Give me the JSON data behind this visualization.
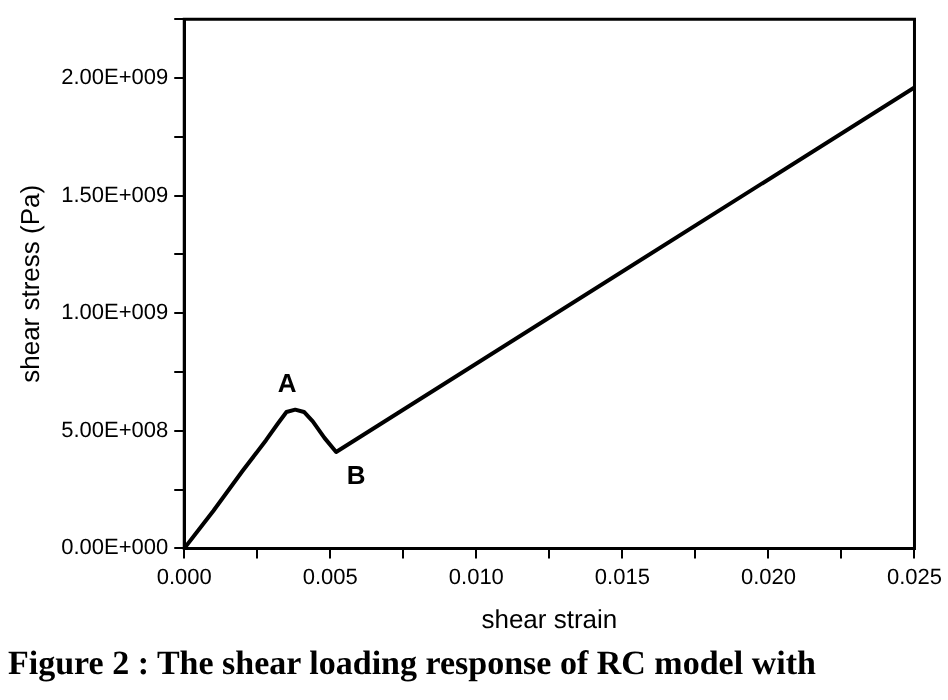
{
  "chart_data": {
    "type": "line",
    "xlabel": "shear strain",
    "ylabel": "shear stress (Pa)",
    "x": [
      0,
      0.001,
      0.002,
      0.0028,
      0.0032,
      0.0035,
      0.0038,
      0.0041,
      0.0044,
      0.0048,
      0.0052,
      0.025
    ],
    "series": [
      {
        "color": "#000000",
        "values": [
          0,
          160000000.0,
          330000000.0,
          460000000.0,
          530000000.0,
          580000000.0,
          590000000.0,
          580000000.0,
          540000000.0,
          470000000.0,
          410000000.0,
          1960000000.0
        ]
      }
    ],
    "xlim": [
      0,
      0.025
    ],
    "xticks": [
      {
        "value": 0,
        "label": "0.000"
      },
      {
        "value": 0.0025,
        "label": null
      },
      {
        "value": 0.005,
        "label": "0.005"
      },
      {
        "value": 0.0075,
        "label": null
      },
      {
        "value": 0.01,
        "label": "0.010"
      },
      {
        "value": 0.0125,
        "label": null
      },
      {
        "value": 0.015,
        "label": "0.015"
      },
      {
        "value": 0.0175,
        "label": null
      },
      {
        "value": 0.02,
        "label": "0.020"
      },
      {
        "value": 0.0225,
        "label": null
      },
      {
        "value": 0.025,
        "label": "0.025"
      }
    ],
    "ylim": [
      0,
      2250000000.0
    ],
    "yticks": [
      {
        "value": 0,
        "label": "0.00E+000"
      },
      {
        "value": 250000000.0,
        "label": null
      },
      {
        "value": 500000000.0,
        "label": "5.00E+008"
      },
      {
        "value": 750000000.0,
        "label": null
      },
      {
        "value": 1000000000.0,
        "label": "1.00E+009"
      },
      {
        "value": 1250000000.0,
        "label": null
      },
      {
        "value": 1500000000.0,
        "label": "1.50E+009"
      },
      {
        "value": 1750000000.0,
        "label": null
      },
      {
        "value": 2000000000.0,
        "label": "2.00E+009"
      },
      {
        "value": 2250000000.0,
        "label": null
      }
    ],
    "annotations": [
      {
        "text": "A",
        "x": 0.0038,
        "y": 590000000.0
      },
      {
        "text": "B",
        "x": 0.0052,
        "y": 410000000.0
      },
      "Figure 2 : The shear loading response of RC model with"
    ],
    "grid": false,
    "legend": false,
    "marker": "none",
    "line_style": "solid"
  }
}
